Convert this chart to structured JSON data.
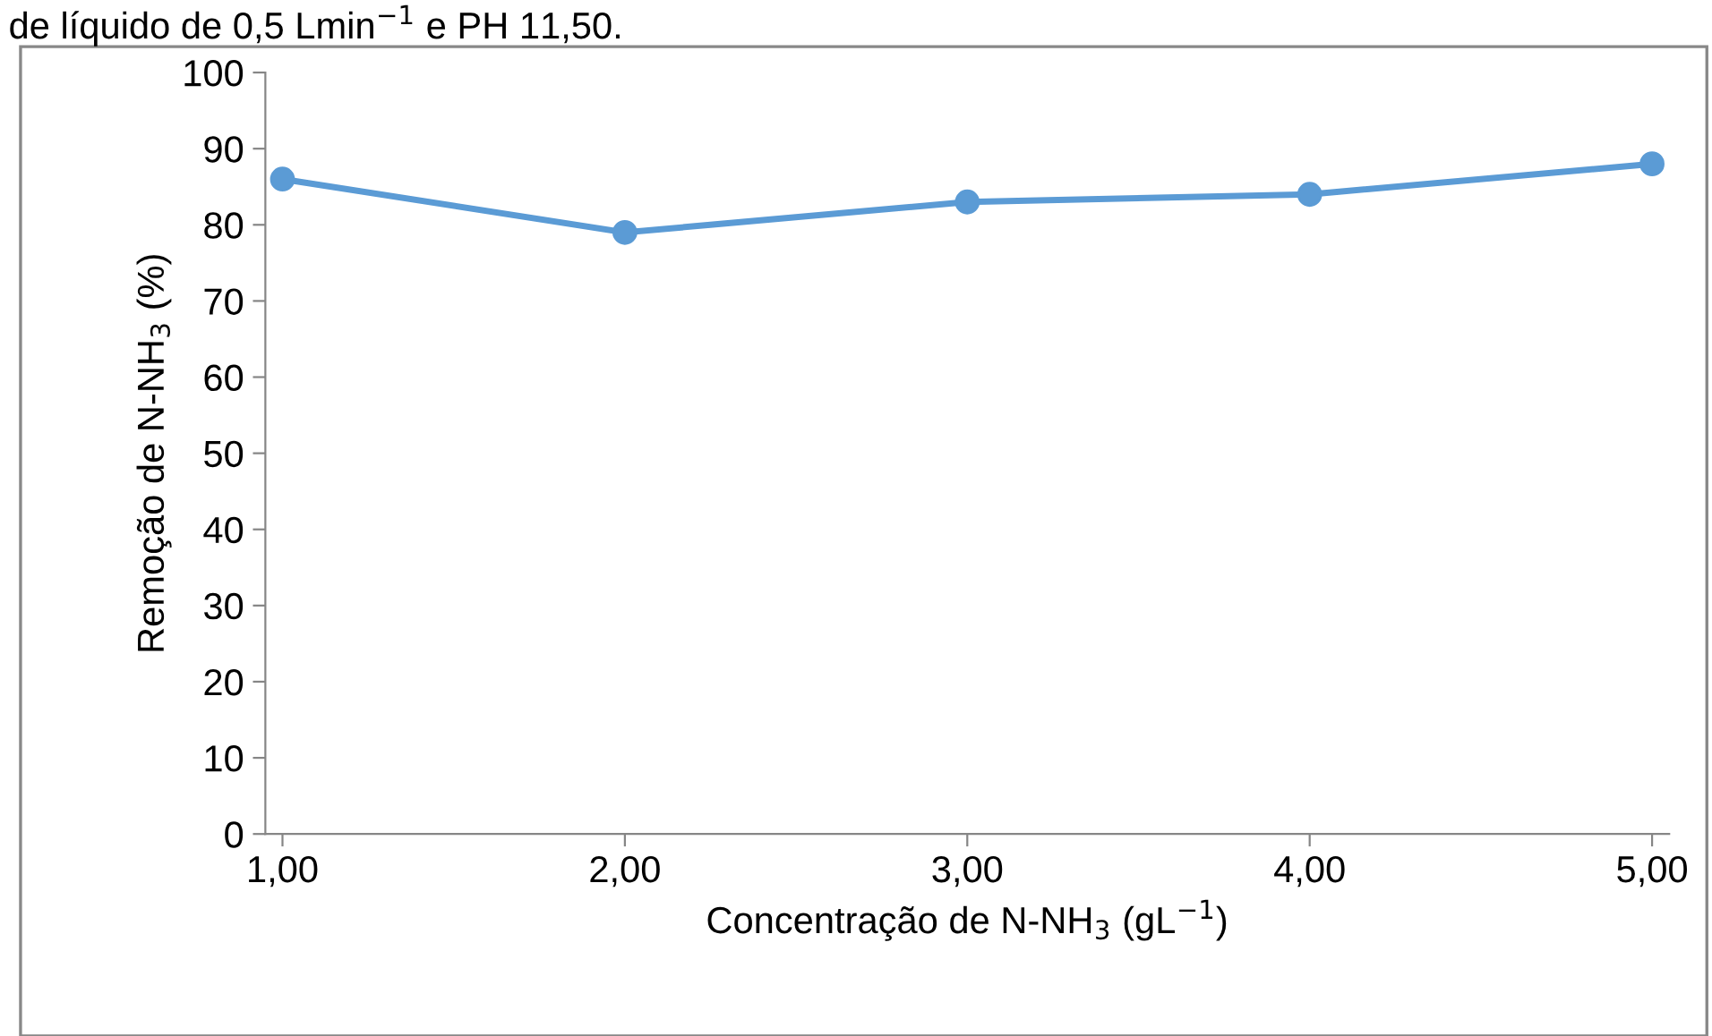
{
  "chart_data": {
    "type": "line",
    "annotations": [
      "de líquido de 0,5 Lmin$^{−1}$ e PH 11,50."
    ],
    "xlabel": "Concentração de N-NH$_{3}$ (gL$^{−1}$)",
    "ylabel": "Remoção de N-NH$_{3}$ (%)",
    "categories": [
      "1,00",
      "2,00",
      "3,00",
      "4,00",
      "5,00"
    ],
    "series": [
      {
        "color": "#5b9bd5",
        "values": [
          86,
          79,
          83,
          84,
          88
        ]
      }
    ],
    "ylim": [
      0,
      100
    ],
    "yticks": [
      0,
      10,
      20,
      30,
      40,
      50,
      60,
      70,
      80,
      90,
      100
    ],
    "marker": "circle",
    "line_style": "solid",
    "grid": false,
    "legend": false
  }
}
